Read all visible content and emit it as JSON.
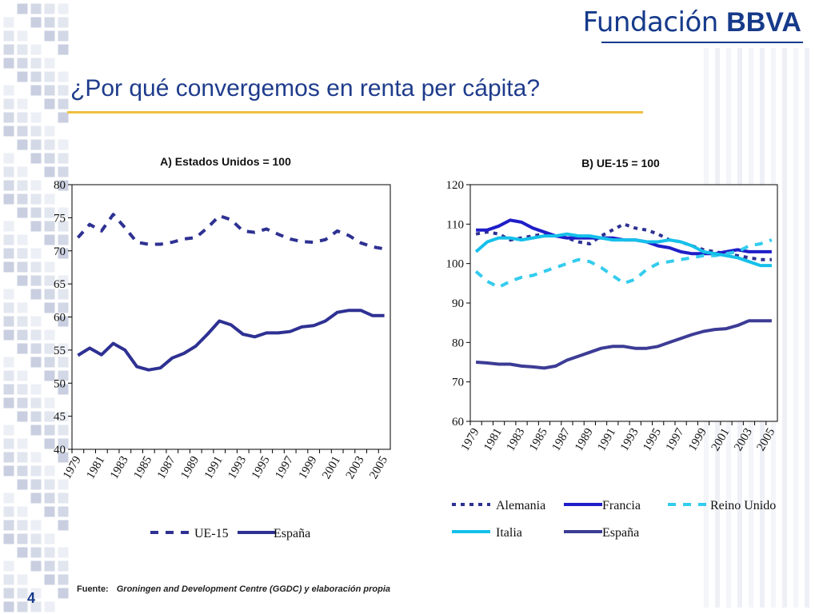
{
  "brand": {
    "light": "Fundación ",
    "bold": "BBVA"
  },
  "title": "¿Por qué convergemos en renta per cápita?",
  "source": {
    "label": "Fuente:",
    "text": "Groningen and Development Centre (GGDC) y elaboración propia"
  },
  "page_number": "4",
  "chart_data": [
    {
      "type": "line",
      "title": "A) Estados Unidos = 100",
      "x": [
        1979,
        1980,
        1981,
        1982,
        1983,
        1984,
        1985,
        1986,
        1987,
        1988,
        1989,
        1990,
        1991,
        1992,
        1993,
        1994,
        1995,
        1996,
        1997,
        1998,
        1999,
        2000,
        2001,
        2002,
        2003,
        2004,
        2005
      ],
      "x_tick_labels": [
        "1979",
        "1981",
        "1983",
        "1985",
        "1987",
        "1989",
        "1991",
        "1993",
        "1995",
        "1997",
        "1999",
        "2001",
        "2003",
        "2005"
      ],
      "ylim": [
        40,
        80
      ],
      "y_ticks": [
        40,
        45,
        50,
        55,
        60,
        65,
        70,
        75,
        80
      ],
      "legend_position": "bottom",
      "series": [
        {
          "name": "UE-15",
          "style": "dashed",
          "color": "#2e3192",
          "values": [
            72.0,
            74.0,
            73.0,
            75.5,
            73.5,
            71.3,
            71.0,
            71.0,
            71.3,
            71.8,
            72.0,
            73.5,
            75.3,
            74.7,
            73.0,
            72.8,
            73.3,
            72.5,
            71.8,
            71.4,
            71.3,
            71.7,
            73.0,
            72.3,
            71.2,
            70.6,
            70.3
          ]
        },
        {
          "name": "España",
          "style": "solid",
          "color": "#2e3192",
          "values": [
            54.2,
            55.3,
            54.3,
            56.0,
            55.0,
            52.5,
            52.0,
            52.3,
            53.8,
            54.5,
            55.6,
            57.4,
            59.4,
            58.8,
            57.4,
            57.0,
            57.6,
            57.6,
            57.8,
            58.5,
            58.7,
            59.4,
            60.7,
            61.0,
            61.0,
            60.2,
            60.2
          ]
        }
      ]
    },
    {
      "type": "line",
      "title": "B) UE-15 = 100",
      "x": [
        1979,
        1980,
        1981,
        1982,
        1983,
        1984,
        1985,
        1986,
        1987,
        1988,
        1989,
        1990,
        1991,
        1992,
        1993,
        1994,
        1995,
        1996,
        1997,
        1998,
        1999,
        2000,
        2001,
        2002,
        2003,
        2004,
        2005
      ],
      "x_tick_labels": [
        "1979",
        "1981",
        "1983",
        "1985",
        "1987",
        "1989",
        "1991",
        "1993",
        "1995",
        "1997",
        "1999",
        "2001",
        "2003",
        "2005"
      ],
      "ylim": [
        60,
        120
      ],
      "y_ticks": [
        60,
        70,
        80,
        90,
        100,
        110,
        120
      ],
      "legend_position": "bottom",
      "series": [
        {
          "name": "Alemania",
          "style": "dotted",
          "color": "#2e3192",
          "values": [
            107.5,
            108.0,
            107.5,
            106.0,
            106.5,
            107.0,
            107.5,
            107.0,
            106.5,
            105.5,
            105.0,
            107.0,
            108.5,
            110.0,
            109.0,
            108.5,
            107.5,
            106.0,
            105.5,
            104.5,
            103.5,
            103.0,
            102.5,
            102.0,
            101.5,
            101.0,
            101.0
          ]
        },
        {
          "name": "Francia",
          "style": "solid",
          "color": "#1f1ec8",
          "values": [
            108.5,
            108.5,
            109.5,
            111.0,
            110.5,
            109.0,
            108.0,
            107.0,
            106.5,
            106.5,
            106.5,
            106.5,
            106.5,
            106.0,
            106.0,
            105.5,
            104.5,
            104.0,
            103.0,
            102.5,
            102.5,
            102.5,
            103.0,
            103.5,
            103.0,
            103.0,
            103.0
          ]
        },
        {
          "name": "Reino Unido",
          "style": "dashed",
          "color": "#33ccee",
          "values": [
            98.0,
            95.5,
            94.0,
            95.5,
            96.5,
            97.0,
            98.0,
            99.0,
            100.0,
            101.0,
            100.5,
            99.0,
            97.0,
            95.0,
            96.0,
            98.5,
            100.0,
            100.5,
            101.0,
            101.5,
            102.0,
            102.0,
            102.5,
            103.0,
            104.5,
            105.0,
            106.0
          ]
        },
        {
          "name": "Italia",
          "style": "solid",
          "color": "#15c0ea",
          "values": [
            103.0,
            105.5,
            106.5,
            106.5,
            106.0,
            106.5,
            107.0,
            107.0,
            107.5,
            107.0,
            107.0,
            106.5,
            106.0,
            106.0,
            106.0,
            105.5,
            105.5,
            106.0,
            105.5,
            104.5,
            103.0,
            102.5,
            102.0,
            101.5,
            100.5,
            99.5,
            99.5
          ]
        },
        {
          "name": "España",
          "style": "solid",
          "color": "#3c3c96",
          "values": [
            75.0,
            74.8,
            74.5,
            74.5,
            74.0,
            73.8,
            73.5,
            74.0,
            75.5,
            76.5,
            77.5,
            78.5,
            79.0,
            79.0,
            78.5,
            78.5,
            79.0,
            80.0,
            81.0,
            82.0,
            82.8,
            83.3,
            83.5,
            84.3,
            85.5,
            85.5,
            85.5
          ]
        }
      ]
    }
  ]
}
